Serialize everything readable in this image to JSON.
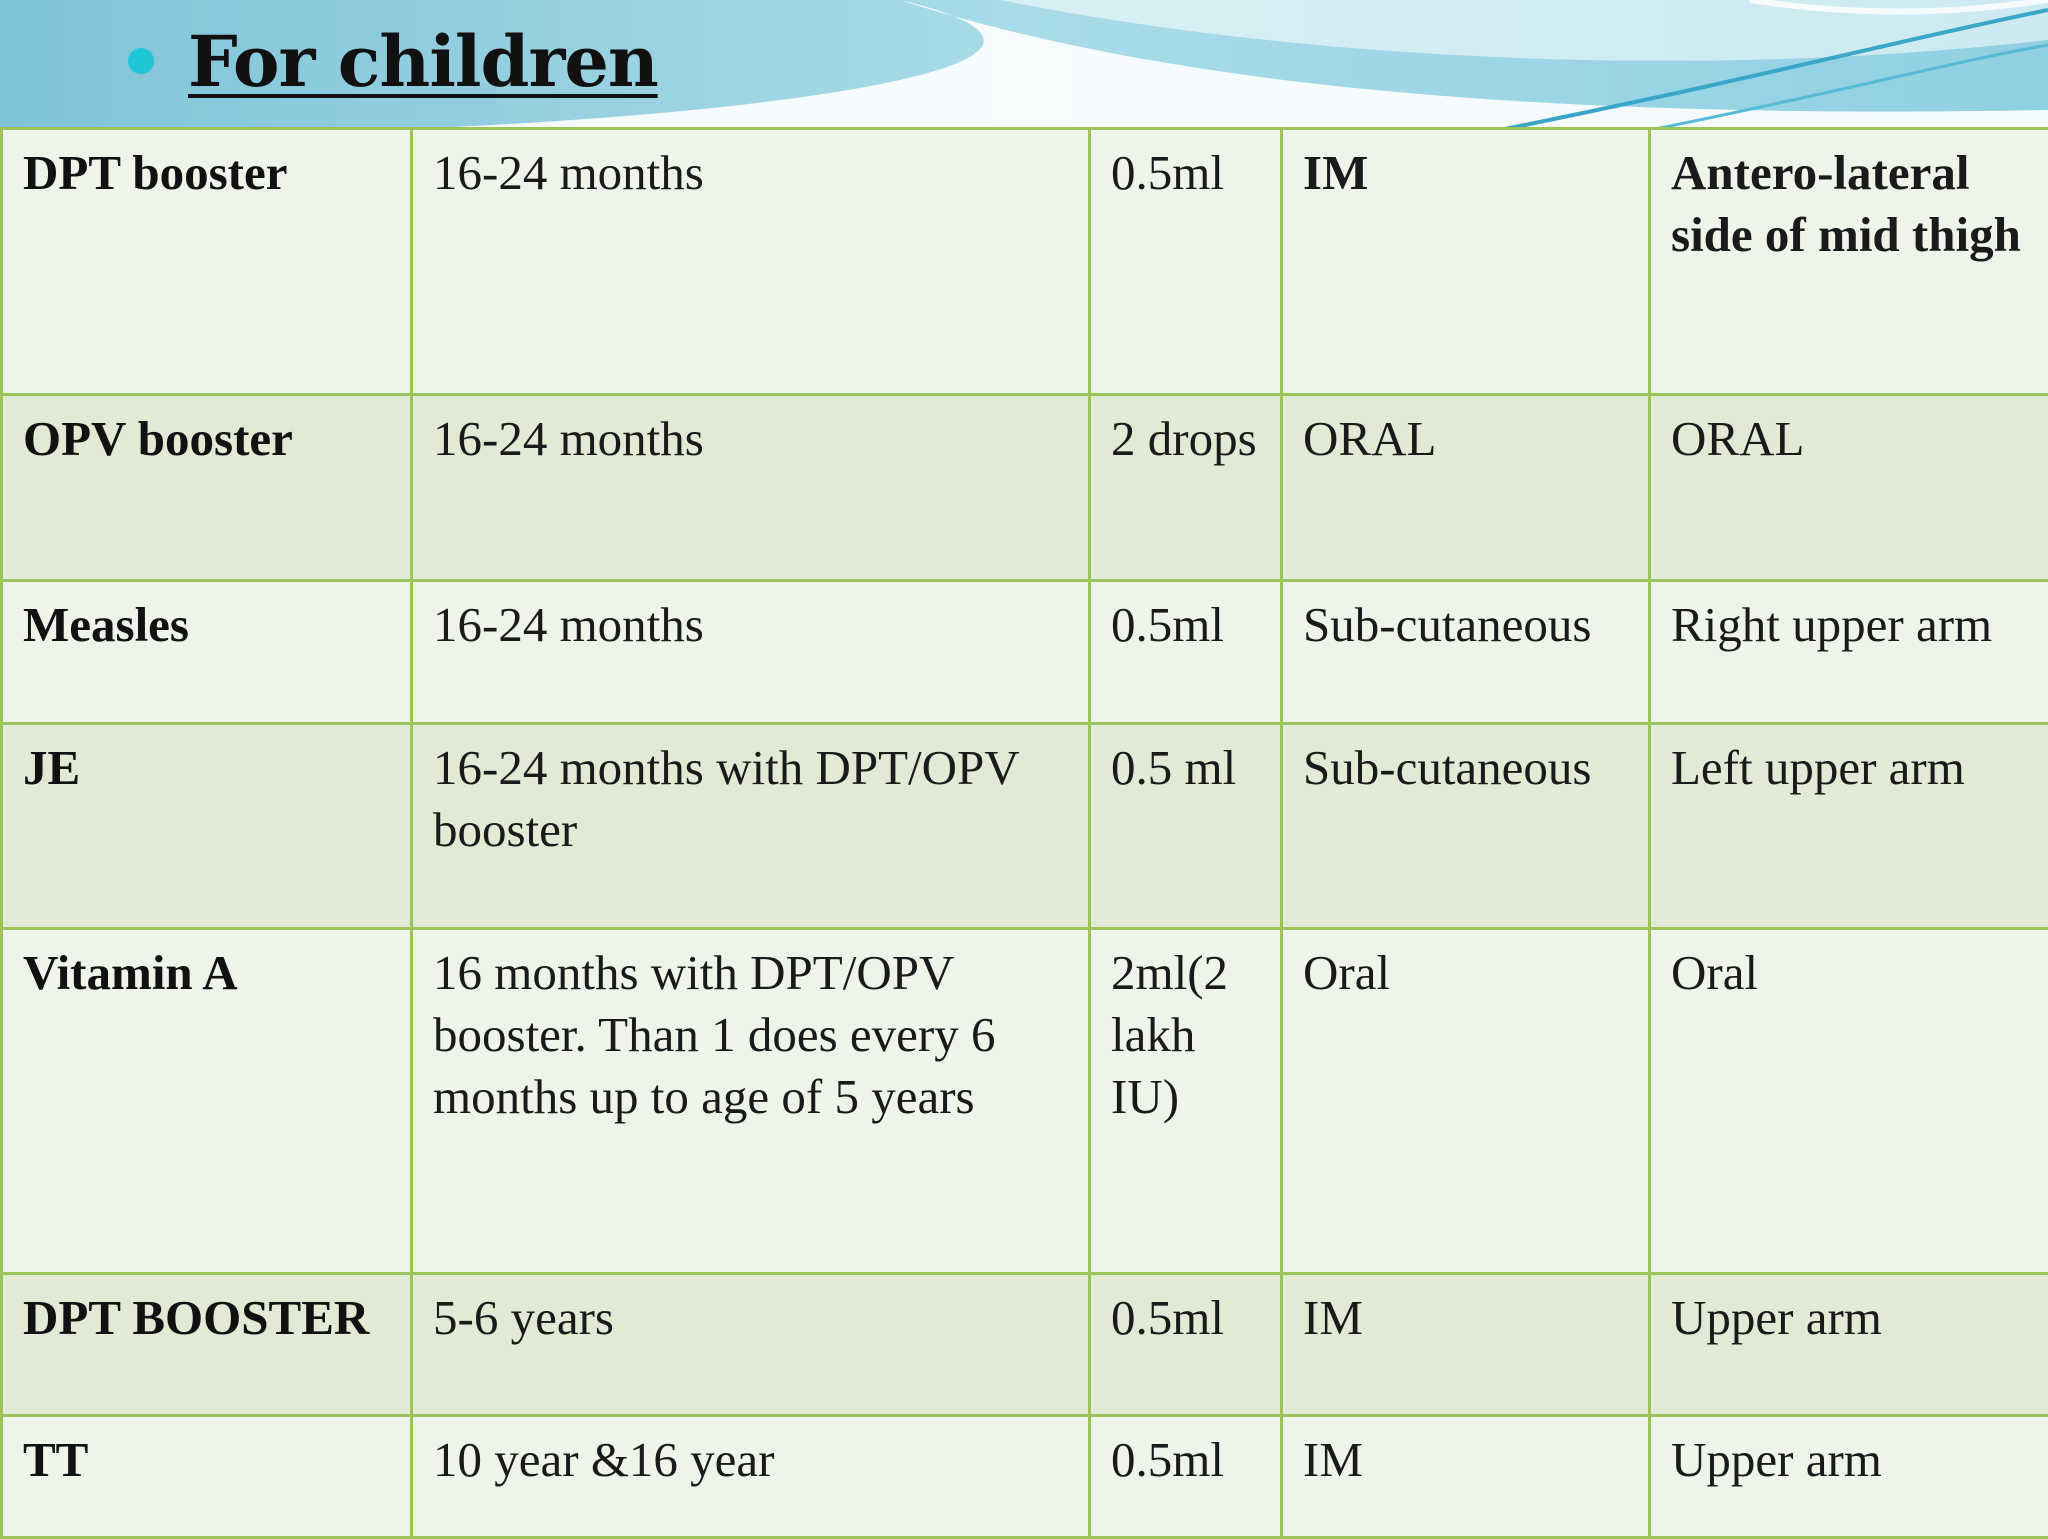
{
  "slide": {
    "title": "For children",
    "colors": {
      "accent_bullet": "#1fc6d6",
      "table_border": "#9cc25a",
      "row_light": "#eff4ea",
      "row_dark": "#e2ead5"
    }
  },
  "table": {
    "rows": [
      {
        "vaccine": "DPT booster",
        "age": "16-24 months",
        "dose": "0.5ml",
        "route": "IM",
        "site": "Antero-lateral side of mid thigh"
      },
      {
        "vaccine": "OPV booster",
        "age": "16-24 months",
        "dose": "2 drops",
        "route": "ORAL",
        "site": "ORAL"
      },
      {
        "vaccine": "Measles",
        "age": "16-24 months",
        "dose": "0.5ml",
        "route": "Sub-cutaneous",
        "site": "Right upper arm"
      },
      {
        "vaccine": "JE",
        "age": "16-24 months with DPT/OPV booster",
        "dose": "0.5 ml",
        "route": "Sub-cutaneous",
        "site": "Left upper arm"
      },
      {
        "vaccine": "Vitamin A",
        "age": "16 months with DPT/OPV booster. Than 1 does every 6 months up to age of 5 years",
        "dose": "2ml(2 lakh IU)",
        "route": "Oral",
        "site": "Oral"
      },
      {
        "vaccine": "DPT BOOSTER",
        "age": "5-6 years",
        "dose": "0.5ml",
        "route": "IM",
        "site": "Upper arm"
      },
      {
        "vaccine": "TT",
        "age": "10 year &16 year",
        "dose": "0.5ml",
        "route": "IM",
        "site": "Upper arm"
      }
    ]
  }
}
